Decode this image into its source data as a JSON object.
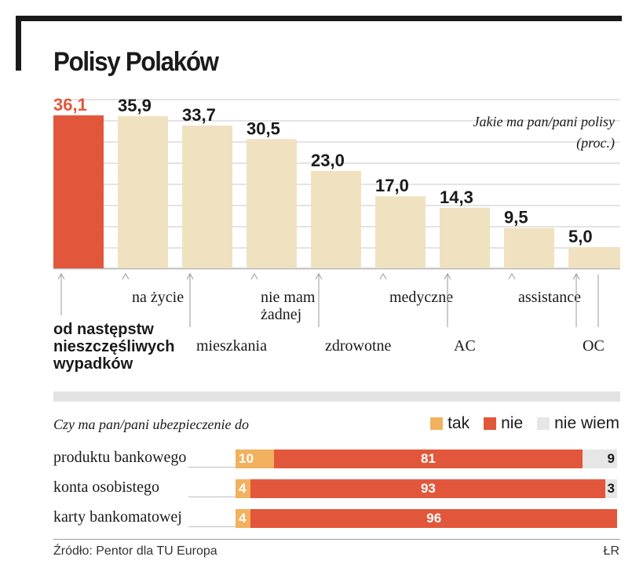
{
  "title": "Polisy Polaków",
  "colors": {
    "highlight": "#e2573b",
    "bar": "#f0e2c0",
    "tak": "#f2b15e",
    "nie": "#e2573b",
    "nie_wiem": "#e6e6e6",
    "grid": "#c8c8c8",
    "text": "#1a1a1a"
  },
  "chart_data": [
    {
      "type": "bar",
      "note": [
        "Jakie ma pan/pani polisy",
        "(proc.)"
      ],
      "categories": [
        [
          "od następstw",
          "nieszczęśliwych",
          "wypadków"
        ],
        [
          "na życie"
        ],
        [
          "mieszkania"
        ],
        [
          "nie mam",
          "żadnej"
        ],
        [
          "zdrowotne"
        ],
        [
          "medyczne"
        ],
        [
          "AC"
        ],
        [
          "assistance"
        ],
        [
          "OC"
        ]
      ],
      "values": [
        36.1,
        35.9,
        33.7,
        30.5,
        23.0,
        17.0,
        14.3,
        9.5,
        5.0
      ],
      "value_labels": [
        "36,1",
        "35,9",
        "33,7",
        "30,5",
        "23,0",
        "17,0",
        "14,3",
        "9,5",
        "5,0"
      ],
      "highlight_index": 0,
      "grid": true
    },
    {
      "type": "bar",
      "stacked": true,
      "orientation": "horizontal",
      "title": "Czy ma pan/pani ubezpieczenie do",
      "legend": [
        "tak",
        "nie",
        "nie wiem"
      ],
      "categories": [
        "produktu bankowego",
        "konta osobistego",
        "karty bankomatowej"
      ],
      "series": [
        {
          "name": "tak",
          "values": [
            10,
            4,
            4
          ]
        },
        {
          "name": "nie",
          "values": [
            81,
            93,
            96
          ]
        },
        {
          "name": "nie wiem",
          "values": [
            9,
            3,
            0
          ]
        }
      ]
    }
  ],
  "footer": {
    "source": "Źródło: Pentor dla TU Europa",
    "credit": "ŁR"
  }
}
